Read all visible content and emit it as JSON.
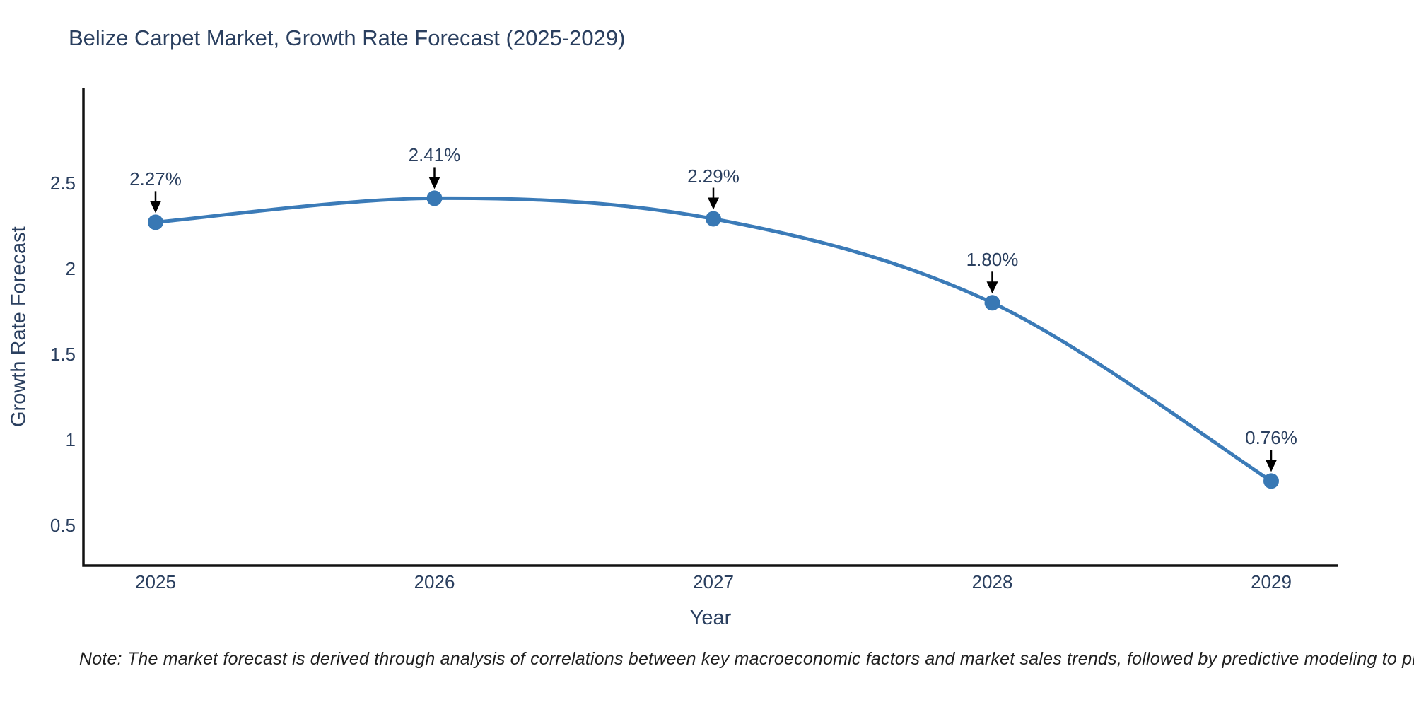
{
  "title": "Belize Carpet Market, Growth Rate Forecast (2025-2029)",
  "note": "Note: The market forecast is derived through analysis of correlations between key macroeconomic factors and market sales trends, followed by predictive modeling to project future sales",
  "chart_data": {
    "type": "line",
    "title": "Belize Carpet Market, Growth Rate Forecast (2025-2029)",
    "xlabel": "Year",
    "ylabel": "Growth Rate Forecast",
    "categories": [
      "2025",
      "2026",
      "2027",
      "2028",
      "2029"
    ],
    "series": [
      {
        "name": "Growth Rate Forecast",
        "values": [
          2.27,
          2.41,
          2.29,
          1.8,
          0.76
        ],
        "point_labels": [
          "2.27%",
          "2.41%",
          "2.29%",
          "1.80%",
          "0.76%"
        ]
      }
    ],
    "y_ticks": [
      0.5,
      1,
      1.5,
      2,
      2.5
    ],
    "ylim": [
      0.27,
      3.05
    ],
    "grid": false,
    "legend_position": "none",
    "line_shape": "spline",
    "annotations_have_arrows": true
  },
  "colors": {
    "accent_line": "#3b7bb8",
    "marker": "#3878b4",
    "axis_line": "#111111",
    "label_text": "#2a3f5f",
    "note_text": "#1f1f1f",
    "arrow": "#000000",
    "background": "#ffffff"
  }
}
